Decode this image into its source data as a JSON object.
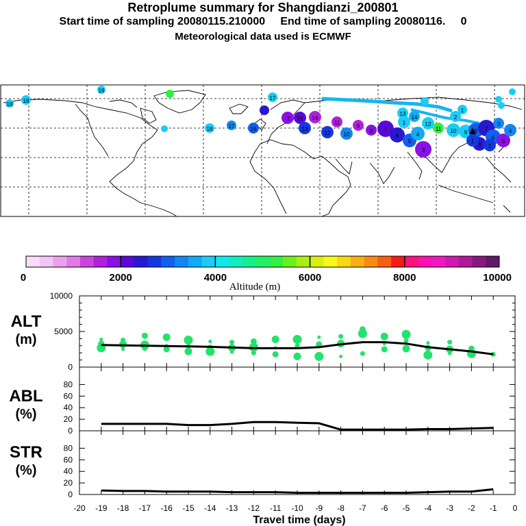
{
  "header": {
    "title": "Retroplume summary for Shangdianzi_200801",
    "sampling": "Start time of sampling 20080115.210000     End time of sampling 20080116.     0",
    "met": "Meteorological data used is ECMWF"
  },
  "colors": {
    "scale": [
      "#f7dcf7",
      "#f3c4f3",
      "#eaa2ee",
      "#df7ae6",
      "#cc44dd",
      "#b020dd",
      "#8a10e6",
      "#5a08d8",
      "#2818d0",
      "#1438e0",
      "#1060f0",
      "#1286f4",
      "#10aaf6",
      "#18cdf8",
      "#10e8ee",
      "#10eebe",
      "#12f090",
      "#20f068",
      "#30f040",
      "#6af01a",
      "#a8f010",
      "#d8f010",
      "#f8f818",
      "#f8d810",
      "#f8b010",
      "#f88a10",
      "#f85e10",
      "#f81818",
      "#ff107a",
      "#ff10b0",
      "#f018c0",
      "#d018b0",
      "#b01898",
      "#881880",
      "#601868"
    ],
    "alt_dots": "#22e36b"
  },
  "legend": {
    "ticks": [
      "0",
      "2000",
      "4000",
      "6000",
      "8000",
      "10000"
    ],
    "label": "Altitude (m)"
  },
  "map": {
    "plume_labels": [
      "19",
      "18",
      "18",
      "18",
      "17",
      "17",
      "16",
      "15",
      "14",
      "13",
      "12",
      "11",
      "10",
      "9",
      "8",
      "7",
      "6",
      "5",
      "4",
      "3",
      "2",
      "1",
      "14",
      "13",
      "12",
      "11",
      "10",
      "9",
      "8",
      "7",
      "6",
      "5",
      "4",
      "3",
      "2",
      "1",
      "3",
      "2",
      "1"
    ]
  },
  "panels": {
    "alt_title": "ALT",
    "alt_unit": "(m)",
    "abl_title": "ABL",
    "abl_unit": "(%)",
    "str_title": "STR",
    "str_unit": "(%)",
    "xlabel": "Travel time (days)"
  },
  "chart_data": {
    "type": "line",
    "x": [
      -19,
      -18,
      -17,
      -16,
      -15,
      -14,
      -13,
      -12,
      -11,
      -10,
      -9,
      -8,
      -7,
      -6,
      -5,
      -4,
      -3,
      -2,
      -1
    ],
    "xticks": [
      "-20",
      "-19",
      "-18",
      "-17",
      "-16",
      "-15",
      "-14",
      "-13",
      "-12",
      "-11",
      "-10",
      "-9",
      "-8",
      "-7",
      "-6",
      "-5",
      "-4",
      "-3",
      "-2",
      "-1",
      "0"
    ],
    "xlim": [
      -20,
      0
    ],
    "series": [
      {
        "name": "ALT",
        "ylim": [
          0,
          10000
        ],
        "yticks": [
          "0",
          "5000",
          "10000"
        ],
        "values": [
          3100,
          3050,
          3000,
          2950,
          2900,
          2850,
          2750,
          2650,
          2650,
          2650,
          2800,
          3200,
          3500,
          3500,
          3300,
          2800,
          2500,
          2200,
          1800
        ],
        "scatter": [
          [
            -19,
            3900
          ],
          [
            -19,
            3300
          ],
          [
            -19,
            2700
          ],
          [
            -18,
            3800
          ],
          [
            -18,
            3200
          ],
          [
            -18,
            2500
          ],
          [
            -17,
            4400
          ],
          [
            -17,
            3100
          ],
          [
            -17,
            2600
          ],
          [
            -16,
            4200
          ],
          [
            -16,
            3000
          ],
          [
            -16,
            2500
          ],
          [
            -15,
            3800
          ],
          [
            -15,
            2900
          ],
          [
            -15,
            2200
          ],
          [
            -14,
            3600
          ],
          [
            -14,
            2700
          ],
          [
            -14,
            2200
          ],
          [
            -13,
            3500
          ],
          [
            -13,
            2700
          ],
          [
            -13,
            2100
          ],
          [
            -12,
            3600
          ],
          [
            -12,
            2800
          ],
          [
            -12,
            2000
          ],
          [
            -11,
            3900
          ],
          [
            -11,
            2700
          ],
          [
            -11,
            1800
          ],
          [
            -10,
            3900
          ],
          [
            -10,
            3000
          ],
          [
            -10,
            1500
          ],
          [
            -9,
            4200
          ],
          [
            -9,
            3200
          ],
          [
            -9,
            1500
          ],
          [
            -8,
            4300
          ],
          [
            -8,
            3300
          ],
          [
            -8,
            1500
          ],
          [
            -7,
            5300
          ],
          [
            -7,
            4700
          ],
          [
            -7,
            1900
          ],
          [
            -6,
            4300
          ],
          [
            -6,
            3300
          ],
          [
            -6,
            2500
          ],
          [
            -5,
            4600
          ],
          [
            -5,
            3700
          ],
          [
            -5,
            2600
          ],
          [
            -4,
            3400
          ],
          [
            -4,
            2700
          ],
          [
            -4,
            1700
          ],
          [
            -3,
            3500
          ],
          [
            -3,
            2500
          ],
          [
            -3,
            1900
          ],
          [
            -2,
            2600
          ],
          [
            -2,
            1900
          ],
          [
            -1,
            1800
          ]
        ]
      },
      {
        "name": "ABL",
        "ylim": [
          0,
          90
        ],
        "yticks": [
          "0",
          "20",
          "40",
          "60",
          "80"
        ],
        "values": [
          12,
          12,
          12,
          12,
          10,
          10,
          12,
          15,
          15,
          14,
          13,
          2,
          2,
          2,
          2,
          3,
          3,
          4,
          5
        ]
      },
      {
        "name": "STR",
        "ylim": [
          0,
          90
        ],
        "yticks": [
          "0",
          "20",
          "40",
          "60",
          "80"
        ],
        "values": [
          7,
          6,
          6,
          5,
          5,
          5,
          4,
          4,
          4,
          3,
          3,
          3,
          3,
          3,
          3,
          4,
          5,
          5,
          9
        ]
      }
    ]
  }
}
